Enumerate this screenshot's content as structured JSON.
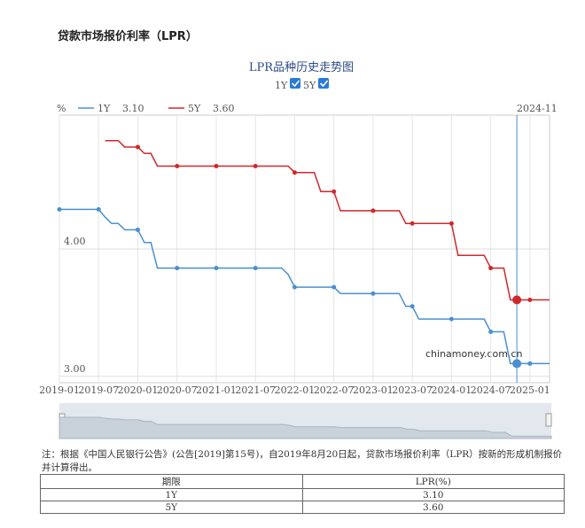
{
  "header": {
    "title": "贷款市场报价利率（LPR）"
  },
  "chart_data": {
    "type": "line",
    "title": "LPR品种历史走势图",
    "y_unit": "%",
    "watermark": "chinamoney.com.cn",
    "cursor_x": "2024-11",
    "x": [
      "2019-01",
      "2019-02",
      "2019-03",
      "2019-04",
      "2019-05",
      "2019-06",
      "2019-07",
      "2019-08",
      "2019-09",
      "2019-10",
      "2019-11",
      "2019-12",
      "2020-01",
      "2020-02",
      "2020-03",
      "2020-04",
      "2020-05",
      "2020-06",
      "2020-07",
      "2020-08",
      "2020-09",
      "2020-10",
      "2020-11",
      "2020-12",
      "2021-01",
      "2021-02",
      "2021-03",
      "2021-04",
      "2021-05",
      "2021-06",
      "2021-07",
      "2021-08",
      "2021-09",
      "2021-10",
      "2021-11",
      "2021-12",
      "2022-01",
      "2022-02",
      "2022-03",
      "2022-04",
      "2022-05",
      "2022-06",
      "2022-07",
      "2022-08",
      "2022-09",
      "2022-10",
      "2022-11",
      "2022-12",
      "2023-01",
      "2023-02",
      "2023-03",
      "2023-04",
      "2023-05",
      "2023-06",
      "2023-07",
      "2023-08",
      "2023-09",
      "2023-10",
      "2023-11",
      "2023-12",
      "2024-01",
      "2024-02",
      "2024-03",
      "2024-04",
      "2024-05",
      "2024-06",
      "2024-07",
      "2024-08",
      "2024-09",
      "2024-10",
      "2024-11",
      "2024-12",
      "2025-01",
      "2025-02",
      "2025-03",
      "2025-04"
    ],
    "series": [
      {
        "name": "1Y",
        "color": "#4a90d0",
        "cursor_value": {
          "value": 3.1,
          "label": "3.10"
        },
        "values": [
          4.31,
          4.31,
          4.31,
          4.31,
          4.31,
          4.31,
          4.31,
          4.25,
          4.2,
          4.2,
          4.15,
          4.15,
          4.15,
          4.05,
          4.05,
          3.85,
          3.85,
          3.85,
          3.85,
          3.85,
          3.85,
          3.85,
          3.85,
          3.85,
          3.85,
          3.85,
          3.85,
          3.85,
          3.85,
          3.85,
          3.85,
          3.85,
          3.85,
          3.85,
          3.85,
          3.8,
          3.7,
          3.7,
          3.7,
          3.7,
          3.7,
          3.7,
          3.7,
          3.65,
          3.65,
          3.65,
          3.65,
          3.65,
          3.65,
          3.65,
          3.65,
          3.65,
          3.65,
          3.55,
          3.55,
          3.45,
          3.45,
          3.45,
          3.45,
          3.45,
          3.45,
          3.45,
          3.45,
          3.45,
          3.45,
          3.45,
          3.35,
          3.35,
          3.35,
          3.1,
          3.1,
          3.1,
          3.1,
          3.1,
          3.1,
          3.1
        ]
      },
      {
        "name": "5Y",
        "color": "#d0282a",
        "cursor_value": {
          "value": 3.6,
          "label": "3.60"
        },
        "values": [
          null,
          null,
          null,
          null,
          null,
          null,
          null,
          4.85,
          4.85,
          4.85,
          4.8,
          4.8,
          4.8,
          4.75,
          4.75,
          4.65,
          4.65,
          4.65,
          4.65,
          4.65,
          4.65,
          4.65,
          4.65,
          4.65,
          4.65,
          4.65,
          4.65,
          4.65,
          4.65,
          4.65,
          4.65,
          4.65,
          4.65,
          4.65,
          4.65,
          4.65,
          4.6,
          4.6,
          4.6,
          4.6,
          4.45,
          4.45,
          4.45,
          4.3,
          4.3,
          4.3,
          4.3,
          4.3,
          4.3,
          4.3,
          4.3,
          4.3,
          4.3,
          4.2,
          4.2,
          4.2,
          4.2,
          4.2,
          4.2,
          4.2,
          4.2,
          3.95,
          3.95,
          3.95,
          3.95,
          3.95,
          3.85,
          3.85,
          3.85,
          3.6,
          3.6,
          3.6,
          3.6,
          3.6,
          3.6,
          3.6
        ]
      }
    ],
    "xlim": [
      "2019-01",
      "2025-04"
    ],
    "xticks": [
      "2019-01",
      "2019-07",
      "2020-01",
      "2020-07",
      "2021-01",
      "2021-07",
      "2022-01",
      "2022-07",
      "2023-01",
      "2023-07",
      "2024-01",
      "2024-07",
      "2025-01"
    ],
    "ylim": [
      2.95,
      5.05
    ],
    "yticks": [
      {
        "value": 3,
        "label": "3.00"
      },
      {
        "value": 4,
        "label": "4.00"
      }
    ],
    "grid": true
  },
  "note": "注：根据《中国人民银行公告》(公告[2019]第15号)，自2019年8月20日起，贷款市场报价利率（LPR）按新的形成机制报价并计算得出。",
  "table": {
    "header": [
      "期限",
      "LPR(%)"
    ],
    "rows": [
      [
        "1Y",
        "3.10"
      ],
      [
        "5Y",
        "3.60"
      ]
    ]
  }
}
